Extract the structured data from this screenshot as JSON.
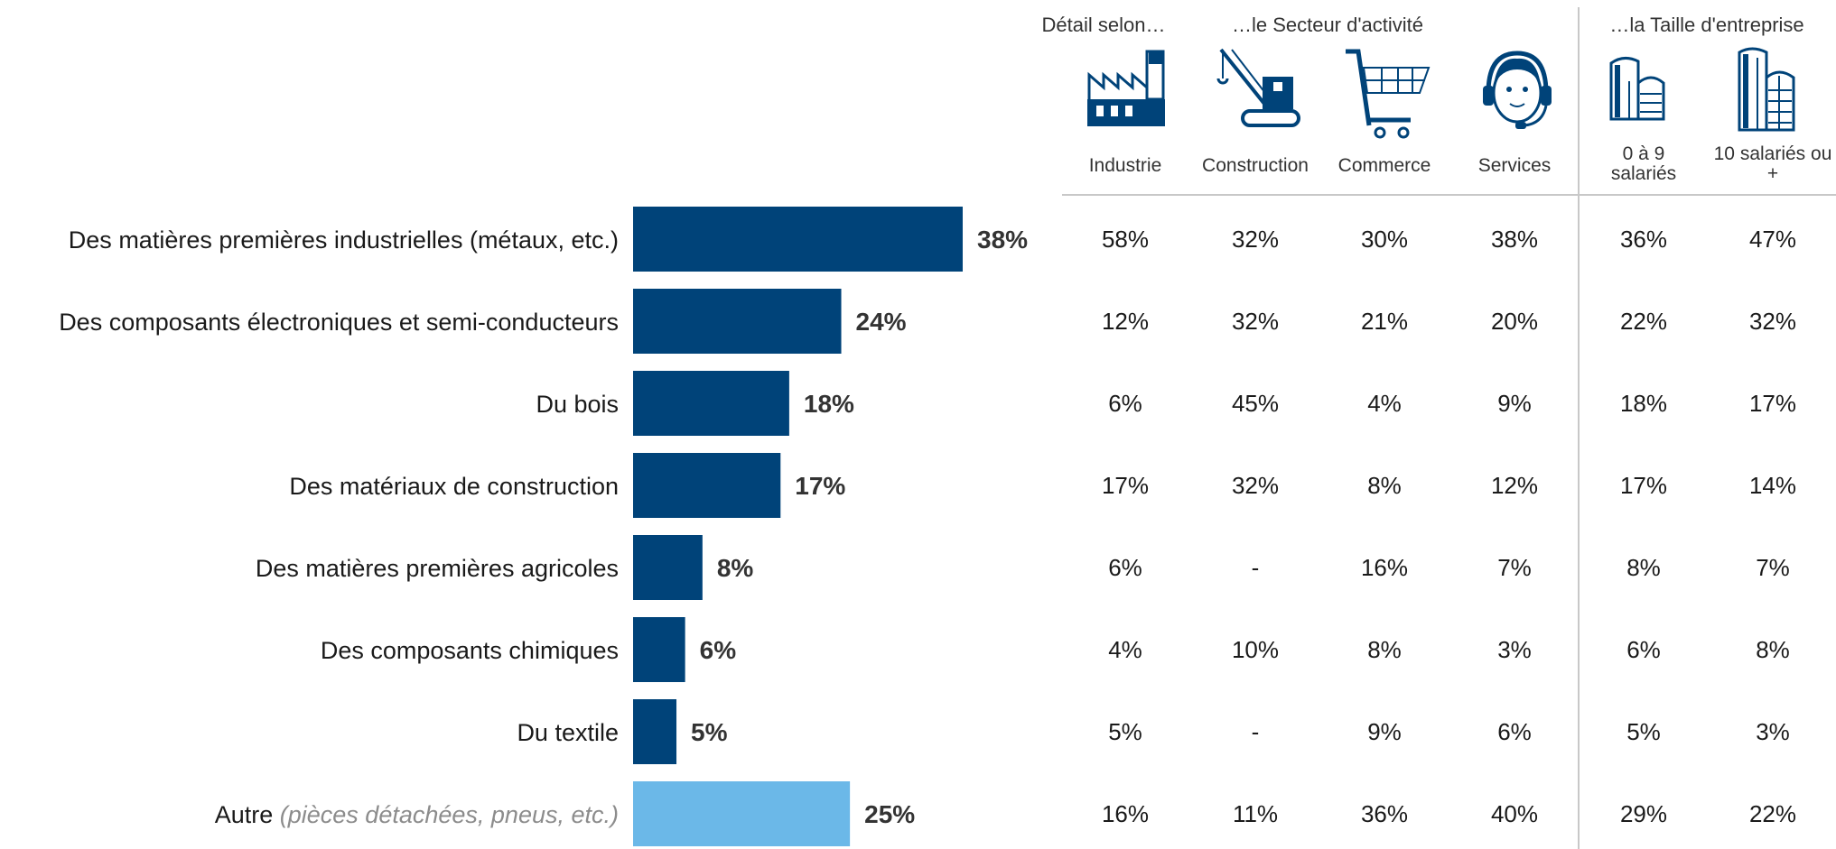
{
  "chart_data": {
    "type": "bar",
    "orientation": "horizontal",
    "categories": [
      "Des matières premières industrielles (métaux, etc.)",
      "Des composants électroniques et semi-conducteurs",
      "Du bois",
      "Des matériaux de construction",
      "Des matières premières agricoles",
      "Des composants chimiques",
      "Du textile",
      "Autre"
    ],
    "category_notes": [
      "",
      "",
      "",
      "",
      "",
      "",
      "",
      "(pièces détachées, pneus, etc.)"
    ],
    "values": [
      38,
      24,
      18,
      17,
      8,
      6,
      5,
      25
    ],
    "value_labels": [
      "38%",
      "24%",
      "18%",
      "17%",
      "8%",
      "6%",
      "5%",
      "25%"
    ],
    "bar_colors": [
      "#004379",
      "#004379",
      "#004379",
      "#004379",
      "#004379",
      "#004379",
      "#004379",
      "#6bb8e8"
    ],
    "xlim": [
      0,
      38
    ],
    "grid": false,
    "detail_table": {
      "group_labels": [
        "Détail selon…",
        "…le Secteur d'activité",
        "…la Taille d'entreprise"
      ],
      "columns": [
        {
          "label": "Industrie",
          "icon": "factory-icon"
        },
        {
          "label": "Construction",
          "icon": "crane-icon"
        },
        {
          "label": "Commerce",
          "icon": "shopping-cart-icon"
        },
        {
          "label": "Services",
          "icon": "headset-operator-icon"
        },
        {
          "label": "0 à 9 salariés",
          "label_lines": [
            "0 à 9",
            "salariés"
          ],
          "icon": "small-building-icon"
        },
        {
          "label": "10 salariés ou +",
          "label_lines": [
            "10 salariés ou",
            "+"
          ],
          "icon": "large-building-icon"
        }
      ],
      "rows": [
        [
          "58%",
          "32%",
          "30%",
          "38%",
          "36%",
          "47%"
        ],
        [
          "12%",
          "32%",
          "21%",
          "20%",
          "22%",
          "32%"
        ],
        [
          "6%",
          "45%",
          "4%",
          "9%",
          "18%",
          "17%"
        ],
        [
          "17%",
          "32%",
          "8%",
          "12%",
          "17%",
          "14%"
        ],
        [
          "6%",
          "-",
          "16%",
          "7%",
          "8%",
          "7%"
        ],
        [
          "4%",
          "10%",
          "8%",
          "3%",
          "6%",
          "8%"
        ],
        [
          "5%",
          "-",
          "9%",
          "6%",
          "5%",
          "3%"
        ],
        [
          "16%",
          "11%",
          "36%",
          "40%",
          "29%",
          "22%"
        ]
      ]
    },
    "colors": {
      "primary": "#004379",
      "other": "#6bb8e8",
      "icon": "#004379",
      "divider": "#c8c8c8"
    }
  }
}
